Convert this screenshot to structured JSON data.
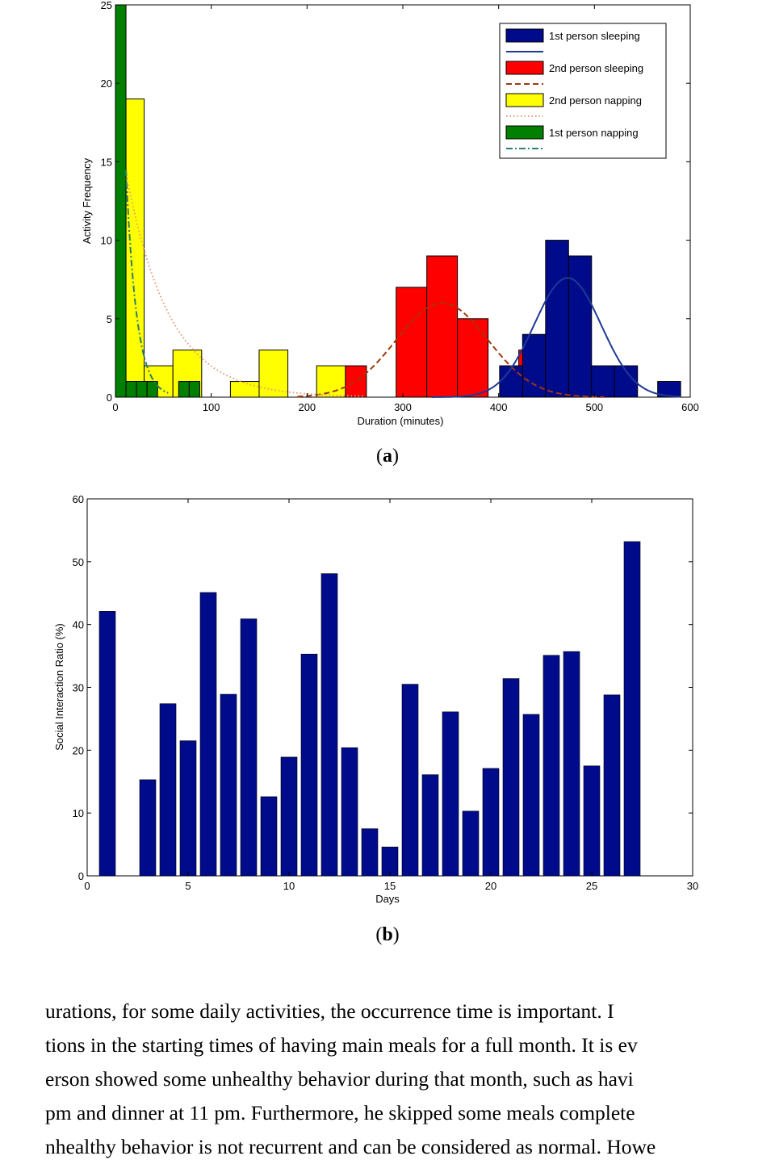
{
  "figure": {
    "caption_a": "a",
    "caption_b": "b"
  },
  "body_text": [
    "urations, for some daily activities, the occurrence time is important.  I",
    "tions in the starting times of having main meals for a full month.  It is ev",
    "erson showed some unhealthy behavior during that month, such as havi",
    " pm and dinner at 11 pm. Furthermore, he skipped some meals complete",
    "nhealthy behavior is not recurrent and can be considered as normal. Howe"
  ],
  "chart_data": [
    {
      "type": "bar",
      "subtype": "histogram",
      "xlabel": "Duration (minutes)",
      "ylabel": "Activity Frequency",
      "xlim": [
        0,
        600
      ],
      "ylim": [
        0,
        25
      ],
      "xticks": [
        0,
        100,
        200,
        300,
        400,
        500,
        600
      ],
      "yticks": [
        0,
        5,
        10,
        15,
        20,
        25
      ],
      "legend_position": "top-right",
      "legend": [
        {
          "label": "1st person sleeping",
          "kind": "bar",
          "color": "#000b8c"
        },
        {
          "label": "",
          "kind": "line",
          "style": "solid",
          "color": "#1f3a93"
        },
        {
          "label": "2nd person sleeping",
          "kind": "bar",
          "color": "#ff0000"
        },
        {
          "label": "",
          "kind": "line",
          "style": "dashed",
          "color": "#a0380c"
        },
        {
          "label": "2nd person napping",
          "kind": "bar",
          "color": "#ffff00"
        },
        {
          "label": "",
          "kind": "line",
          "style": "dotted",
          "color": "#e79a73"
        },
        {
          "label": "1st person napping",
          "kind": "bar",
          "color": "#007f00"
        },
        {
          "label": "",
          "kind": "line",
          "style": "dashdot",
          "color": "#2f7d6d"
        }
      ],
      "series": [
        {
          "name": "2nd person sleeping",
          "color": "#ff0000",
          "bins": [
            {
              "x0": 240,
              "x1": 262,
              "count": 2
            },
            {
              "x0": 293,
              "x1": 325,
              "count": 7
            },
            {
              "x0": 325,
              "x1": 357,
              "count": 9
            },
            {
              "x0": 357,
              "x1": 389,
              "count": 5
            },
            {
              "x0": 421,
              "x1": 453,
              "count": 3
            }
          ],
          "fit": {
            "style": "dashed",
            "color": "#a0380c",
            "mean": 341,
            "sd": 48,
            "peak": 6,
            "from": 190,
            "to": 510
          }
        },
        {
          "name": "1st person sleeping",
          "color": "#000b8c",
          "bins": [
            {
              "x0": 401,
              "x1": 425,
              "count": 2
            },
            {
              "x0": 425,
              "x1": 449,
              "count": 4
            },
            {
              "x0": 449,
              "x1": 473,
              "count": 10
            },
            {
              "x0": 473,
              "x1": 497,
              "count": 9
            },
            {
              "x0": 497,
              "x1": 521,
              "count": 2
            },
            {
              "x0": 521,
              "x1": 545,
              "count": 2
            },
            {
              "x0": 566,
              "x1": 590,
              "count": 1
            }
          ],
          "fit": {
            "style": "solid",
            "color": "#1f3a93",
            "mean": 472,
            "sd": 35,
            "peak": 7.6,
            "from": 330,
            "to": 590
          }
        },
        {
          "name": "2nd person napping",
          "color": "#ffff00",
          "bins": [
            {
              "x0": 11,
              "x1": 30,
              "count": 19
            },
            {
              "x0": 30,
              "x1": 60,
              "count": 2
            },
            {
              "x0": 60,
              "x1": 90,
              "count": 3
            },
            {
              "x0": 120,
              "x1": 150,
              "count": 1
            },
            {
              "x0": 150,
              "x1": 180,
              "count": 3
            },
            {
              "x0": 210,
              "x1": 240,
              "count": 2
            }
          ],
          "fit": {
            "style": "dotted",
            "color": "#e79a73",
            "amplitude": 14,
            "tau": 45,
            "from": 12,
            "to": 260
          }
        },
        {
          "name": "1st person napping",
          "color": "#007f00",
          "bins": [
            {
              "x0": 0,
              "x1": 11,
              "count": 25
            },
            {
              "x0": 11,
              "x1": 22,
              "count": 1
            },
            {
              "x0": 22,
              "x1": 33,
              "count": 1
            },
            {
              "x0": 33,
              "x1": 44,
              "count": 1
            },
            {
              "x0": 66,
              "x1": 77,
              "count": 1
            },
            {
              "x0": 77,
              "x1": 88,
              "count": 1
            }
          ],
          "fit": {
            "style": "dashdot",
            "color": "#2f7d6d",
            "amplitude": 14.5,
            "tau": 11,
            "from": 11,
            "to": 55
          }
        }
      ]
    },
    {
      "type": "bar",
      "xlabel": "Days",
      "ylabel": "Social Interaction Ratio (%)",
      "xlim": [
        0,
        30
      ],
      "ylim": [
        0,
        60
      ],
      "xticks": [
        0,
        5,
        10,
        15,
        20,
        25,
        30
      ],
      "yticks": [
        0,
        10,
        20,
        30,
        40,
        50,
        60
      ],
      "grid": false,
      "color": "#000b8c",
      "x": [
        1,
        2,
        3,
        4,
        5,
        6,
        7,
        8,
        9,
        10,
        11,
        12,
        13,
        14,
        15,
        16,
        17,
        18,
        19,
        20,
        21,
        22,
        23,
        24,
        25,
        26,
        27
      ],
      "values": [
        42.1,
        0,
        15.3,
        27.4,
        21.5,
        45.1,
        28.9,
        40.9,
        12.6,
        18.9,
        35.3,
        48.1,
        20.4,
        7.5,
        4.6,
        30.5,
        16.1,
        26.1,
        10.3,
        17.1,
        31.4,
        25.7,
        35.1,
        35.7,
        17.5,
        28.8,
        53.2
      ]
    }
  ]
}
